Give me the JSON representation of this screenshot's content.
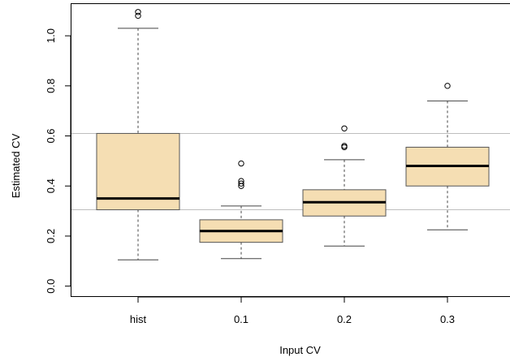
{
  "chart_data": {
    "type": "box",
    "xlabel": "Input CV",
    "ylabel": "Estimated CV",
    "ylim": [
      -0.04,
      1.13
    ],
    "yticks": [
      0.0,
      0.2,
      0.4,
      0.6,
      0.8,
      1.0
    ],
    "ytick_labels": [
      "0.0",
      "0.2",
      "0.4",
      "0.6",
      "0.8",
      "1.0"
    ],
    "categories": [
      "hist",
      "0.1",
      "0.2",
      "0.3"
    ],
    "boxes": [
      {
        "category": "hist",
        "whisker_low": 0.105,
        "q1": 0.305,
        "median": 0.35,
        "q3": 0.61,
        "whisker_high": 1.03,
        "outliers": [
          1.08,
          1.095
        ]
      },
      {
        "category": "0.1",
        "whisker_low": 0.11,
        "q1": 0.175,
        "median": 0.22,
        "q3": 0.265,
        "whisker_high": 0.32,
        "outliers": [
          0.4,
          0.41,
          0.42,
          0.49
        ]
      },
      {
        "category": "0.2",
        "whisker_low": 0.16,
        "q1": 0.28,
        "median": 0.335,
        "q3": 0.385,
        "whisker_high": 0.505,
        "outliers": [
          0.555,
          0.56,
          0.63
        ]
      },
      {
        "category": "0.3",
        "whisker_low": 0.225,
        "q1": 0.4,
        "median": 0.48,
        "q3": 0.555,
        "whisker_high": 0.74,
        "outliers": [
          0.8
        ]
      }
    ],
    "reference_lines": [
      0.305,
      0.61
    ],
    "box_fill": "#f5deb3",
    "reference_line_color": "#bebebe",
    "grid": false
  }
}
